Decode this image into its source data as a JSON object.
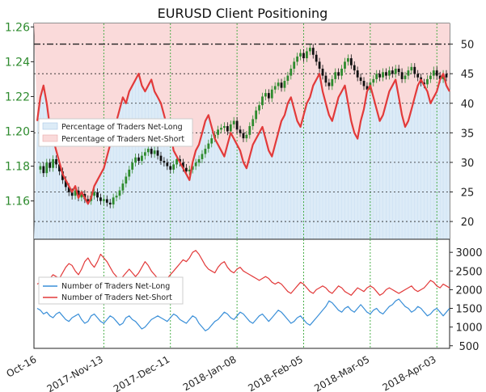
{
  "chart_data": {
    "type": "line",
    "title": "EURUSD Client Positioning",
    "x_ticks": [
      "Oct-16",
      "2017-Nov-13",
      "2017-Dec-11",
      "2018-Jan-08",
      "2018-Feb-05",
      "2018-Mar-05",
      "2018-Apr-03"
    ],
    "top_panel": {
      "left_axis": {
        "ylim": [
          1.138,
          1.262
        ],
        "ticks": [
          "1.16",
          "1.18",
          "1.20",
          "1.22",
          "1.24",
          "1.26"
        ]
      },
      "right_axis": {
        "ylim": [
          17,
          53.5
        ],
        "ticks": [
          "20",
          "25",
          "30",
          "35",
          "40",
          "45",
          "50"
        ]
      },
      "reference_line_right": 50,
      "legend": {
        "position": "middle-left",
        "entries": [
          "Percentage of Traders Net-Long",
          "Percentage of Traders Net-Short"
        ]
      },
      "price_close": [
        1.178,
        1.18,
        1.176,
        1.182,
        1.179,
        1.184,
        1.181,
        1.177,
        1.172,
        1.168,
        1.165,
        1.163,
        1.166,
        1.162,
        1.164,
        1.161,
        1.16,
        1.163,
        1.165,
        1.162,
        1.16,
        1.161,
        1.159,
        1.158,
        1.162,
        1.163,
        1.166,
        1.17,
        1.174,
        1.178,
        1.182,
        1.185,
        1.183,
        1.186,
        1.188,
        1.19,
        1.187,
        1.189,
        1.186,
        1.183,
        1.182,
        1.18,
        1.178,
        1.181,
        1.184,
        1.182,
        1.179,
        1.177,
        1.178,
        1.18,
        1.182,
        1.184,
        1.187,
        1.19,
        1.193,
        1.196,
        1.198,
        1.201,
        1.202,
        1.203,
        1.2,
        1.204,
        1.206,
        1.201,
        1.199,
        1.196,
        1.198,
        1.203,
        1.207,
        1.212,
        1.215,
        1.22,
        1.222,
        1.219,
        1.224,
        1.226,
        1.228,
        1.225,
        1.229,
        1.232,
        1.236,
        1.24,
        1.243,
        1.245,
        1.242,
        1.246,
        1.248,
        1.244,
        1.24,
        1.236,
        1.232,
        1.228,
        1.226,
        1.23,
        1.234,
        1.232,
        1.236,
        1.24,
        1.242,
        1.238,
        1.235,
        1.231,
        1.229,
        1.226,
        1.224,
        1.228,
        1.23,
        1.233,
        1.231,
        1.234,
        1.232,
        1.235,
        1.233,
        1.236,
        1.234,
        1.23,
        1.232,
        1.235,
        1.237,
        1.233,
        1.231,
        1.228,
        1.227,
        1.23,
        1.232,
        1.235,
        1.232,
        1.23,
        1.233,
        1.231
      ],
      "pct_net_long": [
        37,
        41,
        43,
        40,
        36,
        34,
        32,
        30,
        28,
        27,
        26,
        25,
        26,
        24,
        25,
        24,
        23,
        24,
        26,
        27,
        28,
        29,
        31,
        33,
        35,
        37,
        39,
        41,
        40,
        42,
        43,
        44,
        45,
        43,
        42,
        43,
        44,
        42,
        41,
        40,
        38,
        36,
        35,
        32,
        31,
        30,
        29,
        28,
        27,
        30,
        32,
        33,
        35,
        37,
        38,
        36,
        34,
        33,
        32,
        31,
        33,
        35,
        34,
        33,
        32,
        30,
        29,
        31,
        33,
        34,
        35,
        36,
        34,
        32,
        31,
        33,
        35,
        37,
        38,
        40,
        41,
        39,
        37,
        36,
        38,
        40,
        41,
        43,
        44,
        45,
        42,
        40,
        38,
        37,
        39,
        41,
        42,
        43,
        40,
        37,
        35,
        34,
        37,
        39,
        42,
        43,
        41,
        39,
        37,
        38,
        40,
        42,
        43,
        44,
        41,
        38,
        36,
        37,
        39,
        41,
        43,
        44,
        43,
        42,
        40,
        41,
        42,
        44,
        45,
        43,
        42
      ]
    },
    "bottom_panel": {
      "right_axis": {
        "ylim": [
          430,
          3350
        ],
        "ticks": [
          "500",
          "1000",
          "1500",
          "2000",
          "2500",
          "3000"
        ]
      },
      "legend": {
        "position": "top-left",
        "entries": [
          "Number of Traders Net-Long",
          "Number of Traders Net-Short"
        ]
      },
      "series": [
        {
          "name": "Number of Traders Net-Long",
          "color": "#3a8fd8",
          "values": [
            1500,
            1450,
            1350,
            1400,
            1300,
            1250,
            1350,
            1400,
            1300,
            1200,
            1150,
            1250,
            1300,
            1350,
            1200,
            1100,
            1150,
            1300,
            1350,
            1250,
            1150,
            1100,
            1200,
            1300,
            1250,
            1150,
            1050,
            1100,
            1250,
            1300,
            1200,
            1150,
            1050,
            950,
            1000,
            1100,
            1200,
            1250,
            1300,
            1250,
            1200,
            1150,
            1250,
            1350,
            1300,
            1200,
            1150,
            1100,
            1200,
            1300,
            1250,
            1100,
            1000,
            900,
            950,
            1050,
            1150,
            1200,
            1300,
            1400,
            1350,
            1250,
            1200,
            1300,
            1400,
            1350,
            1250,
            1150,
            1100,
            1200,
            1300,
            1350,
            1250,
            1150,
            1250,
            1350,
            1450,
            1400,
            1300,
            1200,
            1100,
            1150,
            1250,
            1300,
            1200,
            1100,
            1050,
            1150,
            1250,
            1350,
            1450,
            1550,
            1700,
            1650,
            1550,
            1450,
            1400,
            1500,
            1550,
            1450,
            1400,
            1500,
            1600,
            1500,
            1400,
            1350,
            1450,
            1500,
            1400,
            1350,
            1450,
            1550,
            1600,
            1700,
            1750,
            1650,
            1550,
            1500,
            1400,
            1450,
            1550,
            1500,
            1400,
            1300,
            1350,
            1450,
            1500,
            1400,
            1300,
            1400,
            1500
          ]
        },
        {
          "name": "Number of Traders Net-Short",
          "color": "#e23a3a",
          "values": [
            2150,
            2200,
            2100,
            2250,
            2300,
            2400,
            2350,
            2300,
            2450,
            2600,
            2700,
            2650,
            2500,
            2400,
            2550,
            2750,
            2850,
            2700,
            2600,
            2750,
            2950,
            2850,
            2750,
            2600,
            2450,
            2350,
            2250,
            2350,
            2450,
            2550,
            2450,
            2350,
            2450,
            2600,
            2750,
            2650,
            2500,
            2400,
            2300,
            2250,
            2200,
            2300,
            2400,
            2500,
            2600,
            2700,
            2800,
            2750,
            2850,
            3000,
            3050,
            2950,
            2800,
            2650,
            2550,
            2500,
            2450,
            2600,
            2700,
            2750,
            2600,
            2500,
            2450,
            2550,
            2600,
            2500,
            2450,
            2400,
            2350,
            2300,
            2250,
            2300,
            2350,
            2300,
            2200,
            2150,
            2200,
            2150,
            2050,
            1950,
            1900,
            2000,
            2100,
            2200,
            2150,
            2050,
            1950,
            1900,
            2000,
            2050,
            2100,
            2050,
            1950,
            1900,
            2000,
            2100,
            2050,
            1950,
            1900,
            1850,
            1950,
            2050,
            2000,
            1950,
            2050,
            2100,
            2050,
            1950,
            1850,
            1900,
            2000,
            2050,
            2000,
            1950,
            1900,
            1950,
            2000,
            2050,
            2100,
            2000,
            1950,
            2000,
            2050,
            2150,
            2250,
            2200,
            2100,
            2050,
            2150,
            2100,
            2050
          ]
        }
      ]
    }
  },
  "colors": {
    "price_up": "#2e8b2e",
    "price_down": "#111111",
    "net_short_line": "#e23a3a",
    "net_long_fill": "#dcebf7",
    "net_short_fill": "#fadada",
    "vgrid": "#3aa83a",
    "hgrid": "#222222"
  }
}
